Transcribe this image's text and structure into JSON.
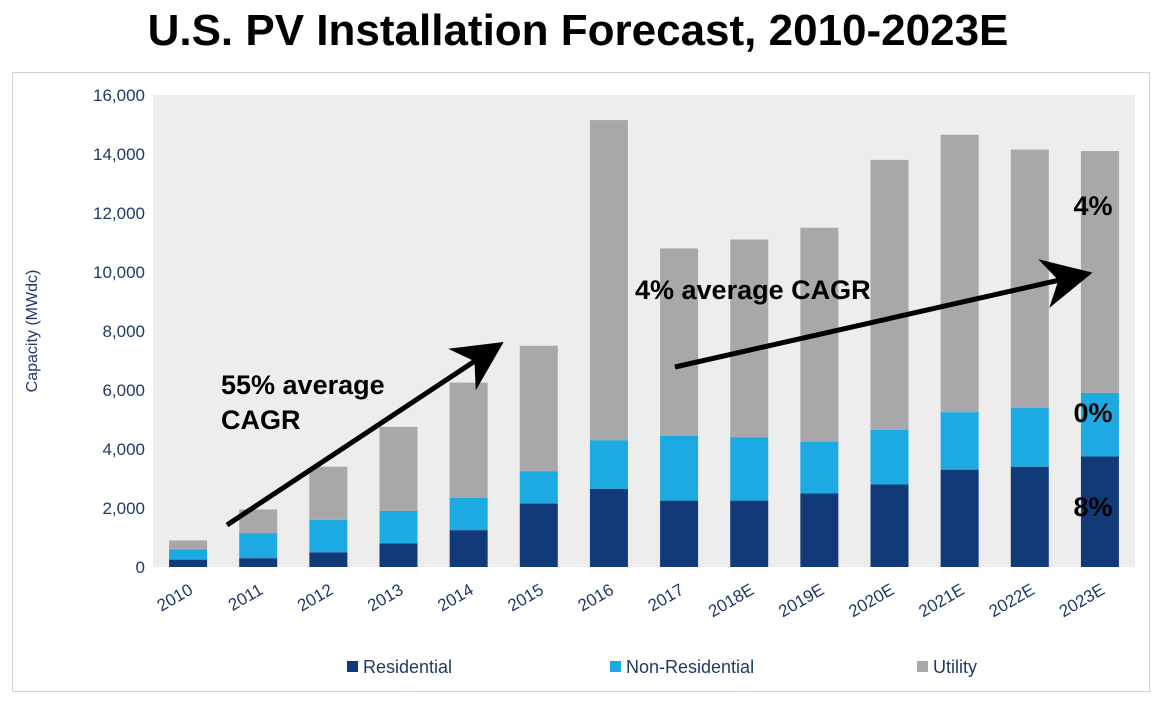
{
  "title": "U.S. PV Installation Forecast, 2010-2023E",
  "chart_data": {
    "type": "bar",
    "stacked": true,
    "categories": [
      "2010",
      "2011",
      "2012",
      "2013",
      "2014",
      "2015",
      "2016",
      "2017",
      "2018E",
      "2019E",
      "2020E",
      "2021E",
      "2022E",
      "2023E"
    ],
    "series": [
      {
        "name": "Residential",
        "color": "#123a78",
        "values": [
          250,
          300,
          500,
          800,
          1250,
          2150,
          2650,
          2250,
          2250,
          2500,
          2800,
          3300,
          3400,
          3750
        ]
      },
      {
        "name": "Non-Residential",
        "color": "#1da9e1",
        "values": [
          350,
          850,
          1100,
          1100,
          1100,
          1100,
          1650,
          2200,
          2150,
          1750,
          1850,
          1950,
          2000,
          2150
        ]
      },
      {
        "name": "Utility",
        "color": "#a8a8aa",
        "values": [
          300,
          800,
          1800,
          2850,
          3900,
          4250,
          10850,
          6350,
          6700,
          7250,
          9150,
          9400,
          8750,
          8200
        ]
      }
    ],
    "ylabel": "Capacity (MWdc)",
    "xlabel": "",
    "ylim": [
      0,
      16000
    ],
    "yticks": [
      0,
      2000,
      4000,
      6000,
      8000,
      10000,
      12000,
      14000,
      16000
    ],
    "ytick_labels": [
      "0",
      "2,000",
      "4,000",
      "6,000",
      "8,000",
      "10,000",
      "12,000",
      "14,000",
      "16,000"
    ],
    "legend": [
      "Residential",
      "Non-Residential",
      "Utility"
    ],
    "legend_position": "bottom",
    "grid": false,
    "annotations": {
      "cagr_left_line1": "55% average",
      "cagr_left_line2": "CAGR",
      "cagr_right": "4% average CAGR",
      "utility_pct": "4%",
      "nonres_pct": "0%",
      "res_pct": "8%"
    }
  }
}
